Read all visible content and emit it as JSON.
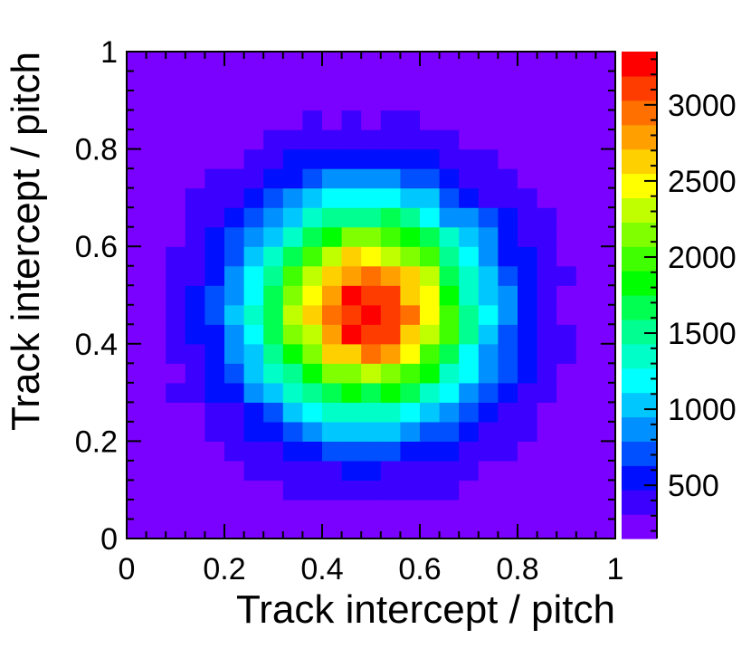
{
  "chart_data": {
    "type": "heatmap",
    "title": "",
    "xlabel": "Track intercept / pitch",
    "ylabel": "Track intercept / pitch",
    "xlim": [
      0,
      1
    ],
    "ylim": [
      0,
      1
    ],
    "x_ticks": [
      "0",
      "0.2",
      "0.4",
      "0.6",
      "0.8",
      "1"
    ],
    "y_ticks": [
      "0",
      "0.2",
      "0.4",
      "0.6",
      "0.8",
      "1"
    ],
    "grid": false,
    "colorbar": {
      "min": 150,
      "max": 3350,
      "ticks": [
        "500",
        "1000",
        "1500",
        "2000",
        "2500",
        "3000"
      ],
      "colors": [
        "#7a00ff",
        "#3c00ff",
        "#0010ff",
        "#0050ff",
        "#0090ff",
        "#00c8ff",
        "#00ffff",
        "#00ffc8",
        "#00ff90",
        "#00ff50",
        "#00ff00",
        "#40ff00",
        "#80ff00",
        "#c0ff00",
        "#ffff00",
        "#ffd000",
        "#ffa000",
        "#ff7000",
        "#ff3c00",
        "#ff0000"
      ]
    },
    "bins": {
      "nx": 25,
      "ny": 25
    },
    "peak": {
      "x": 0.49,
      "y": 0.47,
      "value": 3300
    },
    "background_value": 220,
    "sigma_x": 0.158,
    "sigma_y": 0.15
  }
}
